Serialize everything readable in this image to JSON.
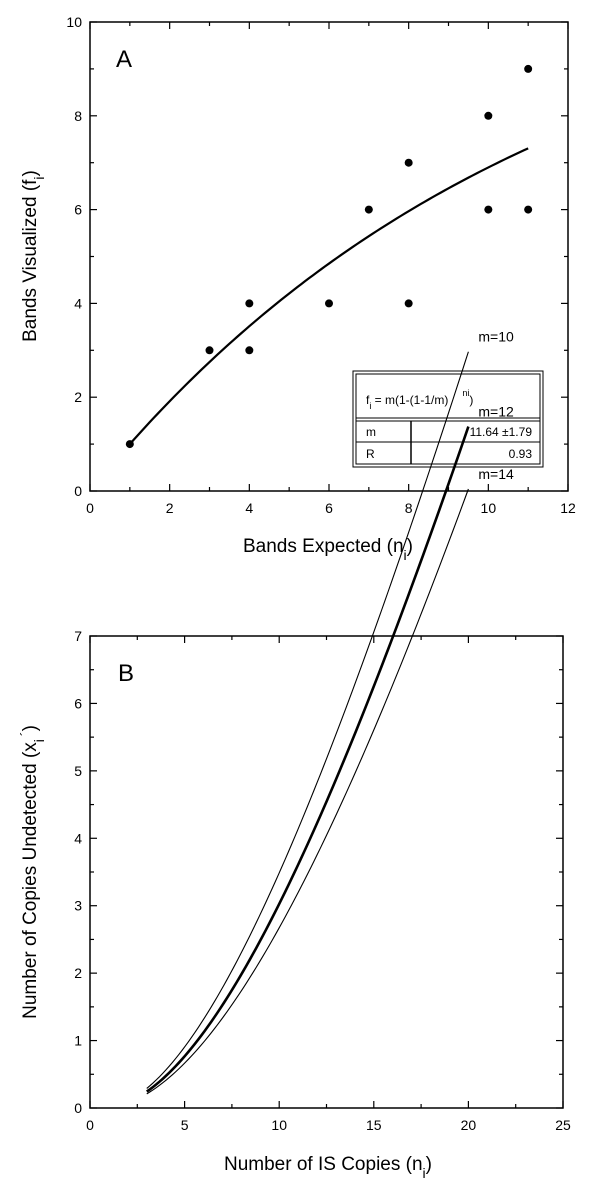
{
  "chart_data": [
    {
      "panel": "A",
      "type": "scatter",
      "xlabel": "Bands Expected (n",
      "xlabel_sub": "i",
      "xlabel_close": ")",
      "ylabel": "Bands Visualized (f",
      "ylabel_sub": "i",
      "ylabel_close": ")",
      "xlim": [
        0,
        12
      ],
      "ylim": [
        0,
        10
      ],
      "xticks": [
        0,
        2,
        4,
        6,
        8,
        10,
        12
      ],
      "yticks": [
        0,
        2,
        4,
        6,
        8,
        10
      ],
      "points": [
        {
          "x": 1,
          "y": 1
        },
        {
          "x": 3,
          "y": 3
        },
        {
          "x": 4,
          "y": 3
        },
        {
          "x": 4,
          "y": 4
        },
        {
          "x": 6,
          "y": 4
        },
        {
          "x": 7,
          "y": 6
        },
        {
          "x": 8,
          "y": 7
        },
        {
          "x": 8,
          "y": 4
        },
        {
          "x": 10,
          "y": 8
        },
        {
          "x": 10,
          "y": 6
        },
        {
          "x": 11,
          "y": 9
        },
        {
          "x": 11,
          "y": 6
        }
      ],
      "fit": {
        "m": 11.64,
        "x_range": [
          1,
          11
        ]
      },
      "legend_box": {
        "placement": "bottom-right",
        "formula_f": "f",
        "formula_sub": "i",
        "formula_body": " = m(1-(1-1/m)",
        "formula_sup": "ni",
        "formula_close": ")",
        "rows": [
          {
            "label": "m",
            "value": "11.64 ±1.79"
          },
          {
            "label": "R",
            "value": "0.93"
          }
        ]
      }
    },
    {
      "panel": "B",
      "type": "line",
      "xlabel": "Number of IS Copies (n",
      "xlabel_sub": "i",
      "xlabel_close": ")",
      "ylabel": "Number of Copies Undetected (x",
      "ylabel_sub": "i",
      "ylabel_prime": "´",
      "ylabel_close": ")",
      "xlim": [
        0,
        25
      ],
      "ylim": [
        0,
        7
      ],
      "xticks": [
        0,
        5,
        10,
        15,
        20,
        25
      ],
      "yticks": [
        0,
        1,
        2,
        3,
        4,
        5,
        6,
        7
      ],
      "x_range": [
        3,
        20
      ],
      "series": [
        {
          "name": "m=10",
          "m": 10
        },
        {
          "name": "m=12",
          "m": 12
        },
        {
          "name": "m=14",
          "m": 14
        }
      ]
    }
  ]
}
